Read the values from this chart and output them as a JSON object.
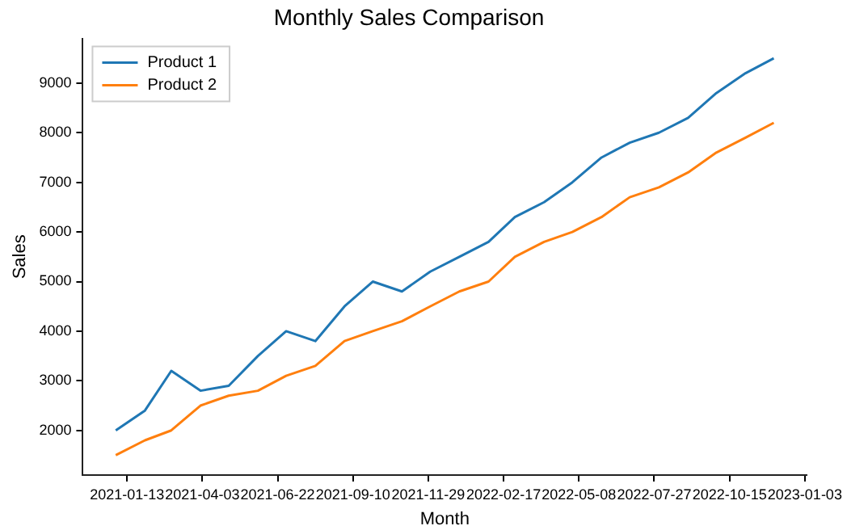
{
  "chart_data": {
    "type": "line",
    "title": "Monthly Sales Comparison",
    "xlabel": "Month",
    "ylabel": "Sales",
    "x": [
      "2021-01-01",
      "2021-02-01",
      "2021-03-01",
      "2021-04-01",
      "2021-05-01",
      "2021-06-01",
      "2021-07-01",
      "2021-08-01",
      "2021-09-01",
      "2021-10-01",
      "2021-11-01",
      "2021-12-01",
      "2022-01-01",
      "2022-02-01",
      "2022-03-01",
      "2022-04-01",
      "2022-05-01",
      "2022-06-01",
      "2022-07-01",
      "2022-08-01",
      "2022-09-01",
      "2022-10-01",
      "2022-11-01",
      "2022-12-01"
    ],
    "series": [
      {
        "name": "Product 1",
        "color": "#1f77b4",
        "values": [
          2000,
          2400,
          3200,
          2800,
          2900,
          3500,
          4000,
          3800,
          4500,
          5000,
          4800,
          5200,
          5500,
          5800,
          6300,
          6600,
          7000,
          7500,
          7800,
          8000,
          8300,
          8800,
          9200,
          9500
        ]
      },
      {
        "name": "Product 2",
        "color": "#ff7f0e",
        "values": [
          1500,
          1800,
          2000,
          2500,
          2700,
          2800,
          3100,
          3300,
          3800,
          4000,
          4200,
          4500,
          4800,
          5000,
          5500,
          5800,
          6000,
          6300,
          6700,
          6900,
          7200,
          7600,
          7900,
          8200
        ]
      }
    ],
    "xlim": [
      "2020-11-27",
      "2023-01-05"
    ],
    "xticks": [
      "2021-01-13",
      "2021-04-03",
      "2021-06-22",
      "2021-09-10",
      "2021-11-29",
      "2022-02-17",
      "2022-05-08",
      "2022-07-27",
      "2022-10-15",
      "2023-01-03"
    ],
    "ylim": [
      1100,
      9900
    ],
    "yticks": [
      2000,
      3000,
      4000,
      5000,
      6000,
      7000,
      8000,
      9000
    ],
    "grid": false,
    "legend": "top left",
    "marker": "none",
    "line_style": "solid"
  }
}
